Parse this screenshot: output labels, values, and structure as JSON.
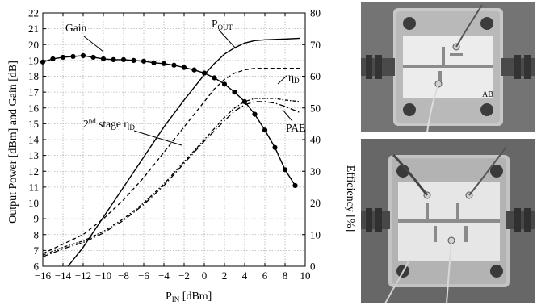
{
  "chart_data": {
    "type": "line",
    "xlabel_main": "P",
    "xlabel_sub": "IN",
    "xlabel_unit": " [dBm]",
    "ylabel": "Output Power [dBm] and Gain [dB]",
    "y2label": "Efficiency [%]",
    "xlim": [
      -16,
      10
    ],
    "ylim": [
      6,
      22
    ],
    "y2lim": [
      0,
      80
    ],
    "grid": true,
    "xticks": [
      -16,
      -14,
      -12,
      -10,
      -8,
      -6,
      -4,
      -2,
      0,
      2,
      4,
      6,
      8,
      10
    ],
    "yticks": [
      6,
      7,
      8,
      9,
      10,
      11,
      12,
      13,
      14,
      15,
      16,
      17,
      18,
      19,
      20,
      21,
      22
    ],
    "y2ticks": [
      0,
      10,
      20,
      30,
      40,
      50,
      60,
      70,
      80
    ],
    "series": [
      {
        "name": "Gain",
        "axis": "left",
        "style": "solid-dots",
        "x": [
          -16,
          -15,
          -14,
          -13,
          -12,
          -11,
          -10,
          -9,
          -8,
          -7,
          -6,
          -5,
          -4,
          -3,
          -2,
          -1,
          0,
          1,
          2,
          3,
          4,
          5,
          6,
          7,
          8,
          9
        ],
        "y": [
          18.9,
          19.1,
          19.2,
          19.25,
          19.3,
          19.2,
          19.1,
          19.05,
          19.05,
          19.0,
          18.95,
          18.85,
          18.8,
          18.7,
          18.55,
          18.4,
          18.2,
          17.9,
          17.5,
          17.0,
          16.4,
          15.6,
          14.6,
          13.5,
          12.1,
          11.1
        ]
      },
      {
        "name": "P_OUT",
        "label_main": "P",
        "label_sub": "OUT",
        "axis": "left",
        "style": "solid",
        "x": [
          -13.5,
          -12,
          -10,
          -8,
          -6,
          -4,
          -2,
          0,
          1,
          2,
          3,
          4,
          5,
          6,
          8,
          9.5
        ],
        "y": [
          6.0,
          7.2,
          9.1,
          11.0,
          12.9,
          14.8,
          16.5,
          18.1,
          18.8,
          19.4,
          19.8,
          20.1,
          20.25,
          20.3,
          20.35,
          20.4
        ]
      },
      {
        "name": "η_D",
        "label_main": "η",
        "label_sub": "D",
        "axis": "right",
        "style": "dashed",
        "x": [
          -16,
          -14,
          -12,
          -10,
          -8,
          -6,
          -4,
          -2,
          0,
          1,
          2,
          3,
          4,
          5,
          6,
          7,
          8,
          9.5
        ],
        "y": [
          4,
          7,
          10,
          15,
          21,
          28,
          36,
          44,
          52,
          56,
          59,
          61,
          62,
          62.5,
          62.5,
          62.5,
          62.5,
          62.5
        ]
      },
      {
        "name": "2nd stage η_D",
        "label_main": "2",
        "label_sup": "nd",
        "label_mid": " stage η",
        "label_sub": "D",
        "axis": "right",
        "style": "dash-dot-dense",
        "x": [
          -16,
          -14,
          -12,
          -10,
          -8,
          -6,
          -4,
          -2,
          0,
          2,
          3,
          4,
          5,
          6,
          7,
          8,
          9.5
        ],
        "y": [
          3.5,
          6,
          8,
          11,
          15,
          20,
          26,
          33,
          40,
          47,
          50,
          52,
          53,
          53,
          53,
          52.5,
          52
        ]
      },
      {
        "name": "PAE",
        "axis": "right",
        "style": "dash-dot",
        "x": [
          -16,
          -14,
          -12,
          -10,
          -8,
          -6,
          -4,
          -2,
          0,
          2,
          3,
          4,
          5,
          6,
          7,
          8,
          9.5
        ],
        "y": [
          3,
          5.5,
          7.5,
          10.5,
          14.5,
          19.5,
          25.5,
          32.5,
          39.5,
          46,
          49,
          51,
          52,
          52,
          51.5,
          50.5,
          48.5
        ]
      }
    ]
  },
  "images": {
    "photo_top": "photograph of first amplifier board with SMA connectors",
    "photo_bottom": "photograph of second amplifier board with SMA connectors"
  }
}
